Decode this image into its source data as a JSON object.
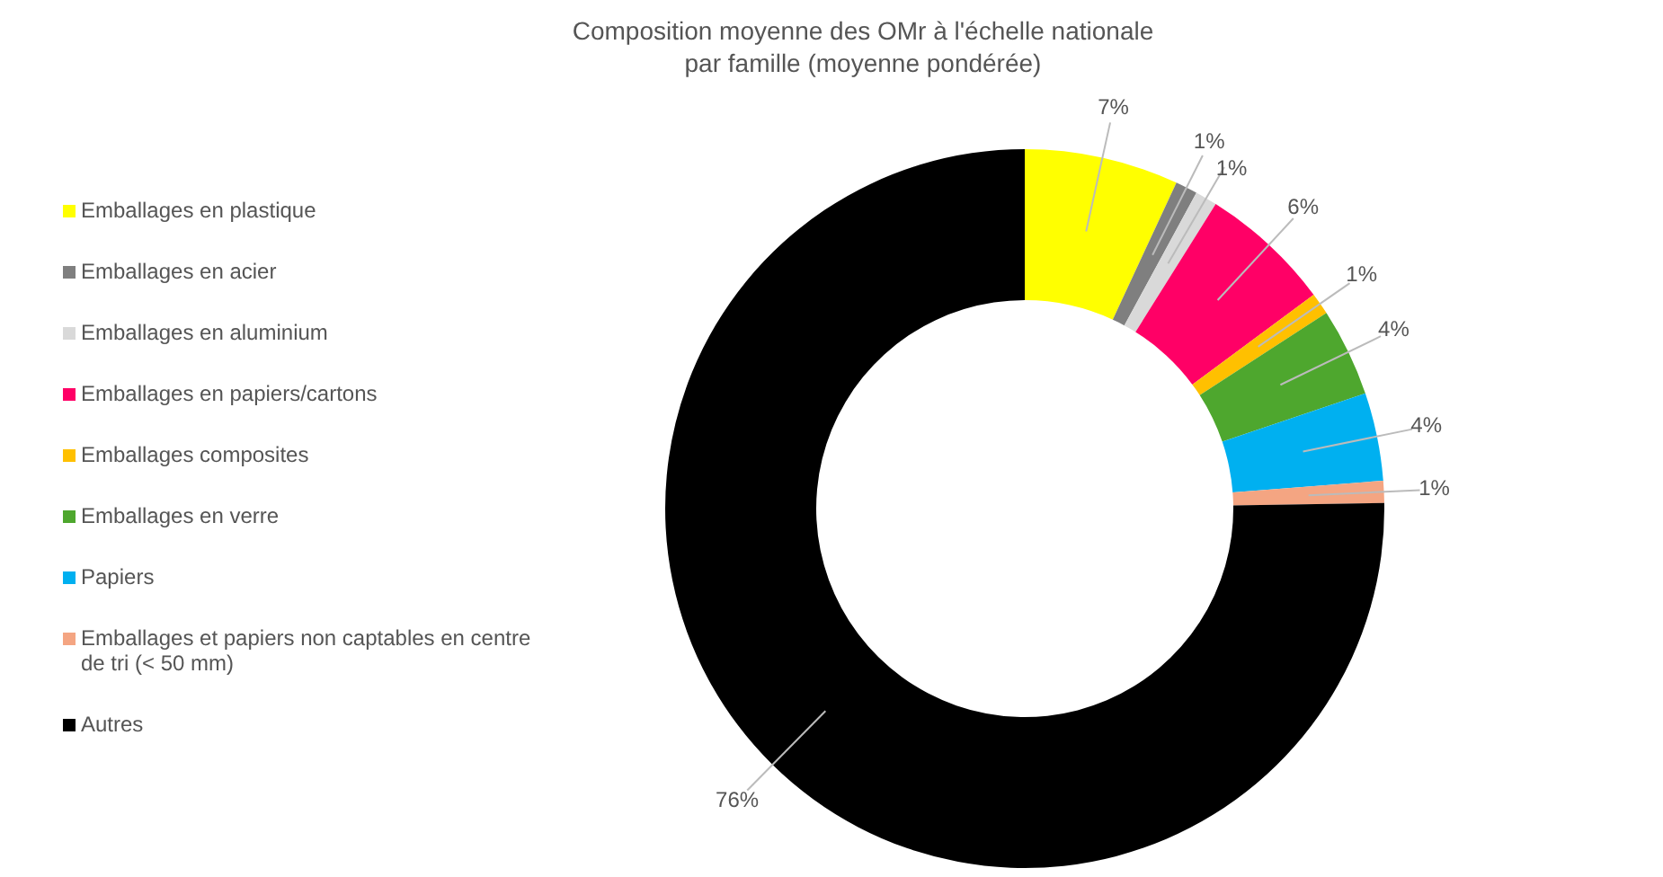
{
  "chart_data": {
    "type": "donut",
    "title": "Composition moyenne des OMr à l'échelle nationale\npar famille (moyenne pondérée)",
    "categories": [
      "Emballages en plastique",
      "Emballages en acier",
      "Emballages en aluminium",
      "Emballages en papiers/cartons",
      "Emballages composites",
      "Emballages en verre",
      "Papiers",
      "Emballages et papiers non captables en centre de tri (< 50 mm)",
      "Autres"
    ],
    "values": [
      7,
      1,
      1,
      6,
      1,
      4,
      4,
      1,
      76
    ],
    "colors": [
      "#ffff00",
      "#7f7f7f",
      "#d9d9d9",
      "#ff0066",
      "#ffc000",
      "#4ea72e",
      "#00b0f0",
      "#f4a582",
      "#000000"
    ],
    "value_labels": [
      "7%",
      "1%",
      "1%",
      "6%",
      "1%",
      "4%",
      "4%",
      "1%",
      "76%"
    ],
    "legend": "left"
  }
}
